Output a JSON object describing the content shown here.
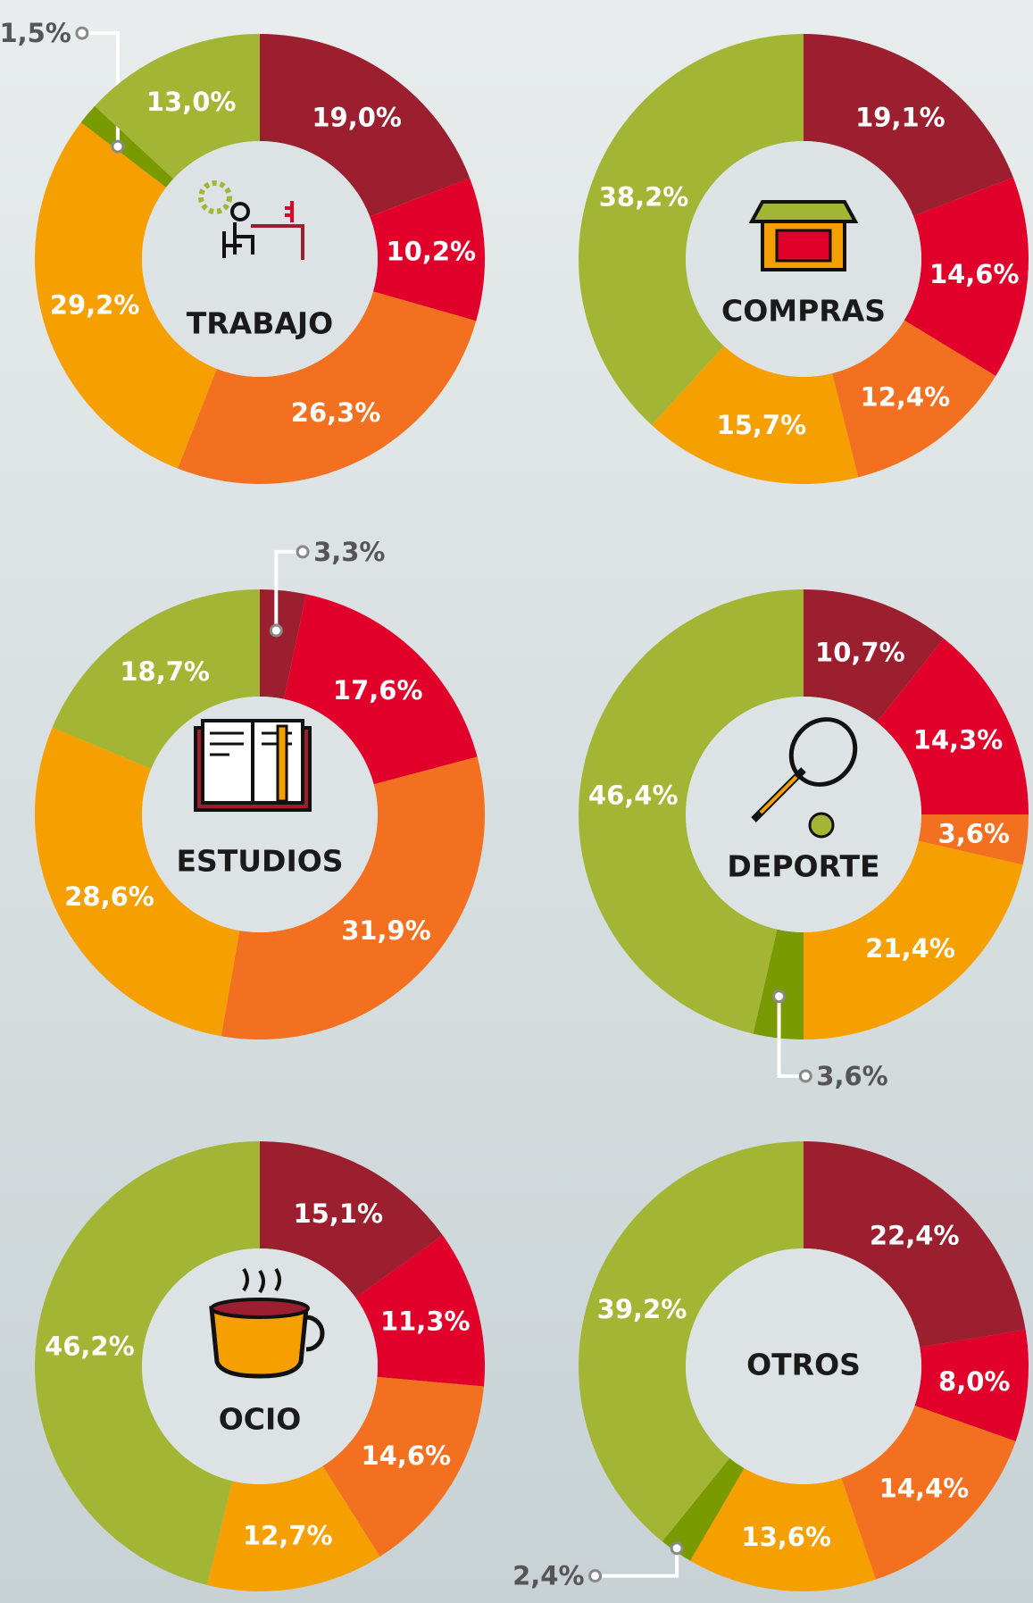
{
  "chart_data": [
    {
      "type": "donut",
      "title": "TRABAJO",
      "values": [
        19.0,
        10.2,
        26.3,
        29.2,
        1.5,
        13.0
      ],
      "value_labels": [
        "19,0%",
        "10,2%",
        "26,3%",
        "29,2%",
        "1,5%",
        "13,0%"
      ],
      "colors": [
        "#9b1f2e",
        "#e0002a",
        "#f37021",
        "#f5a000",
        "#7a9a01",
        "#a3b534"
      ]
    },
    {
      "type": "donut",
      "title": "COMPRAS",
      "values": [
        19.1,
        14.6,
        12.4,
        15.7,
        38.2
      ],
      "value_labels": [
        "19,1%",
        "14,6%",
        "12,4%",
        "15,7%",
        "38,2%"
      ],
      "colors": [
        "#9b1f2e",
        "#e0002a",
        "#f37021",
        "#f5a000",
        "#a3b534"
      ]
    },
    {
      "type": "donut",
      "title": "ESTUDIOS",
      "values": [
        3.3,
        17.6,
        31.9,
        28.6,
        18.7
      ],
      "value_labels": [
        "3,3%",
        "17,6%",
        "31,9%",
        "28,6%",
        "18,7%"
      ],
      "colors": [
        "#9b1f2e",
        "#e0002a",
        "#f37021",
        "#f5a000",
        "#a3b534"
      ]
    },
    {
      "type": "donut",
      "title": "DEPORTE",
      "values": [
        10.7,
        14.3,
        3.6,
        21.4,
        3.6,
        46.4
      ],
      "value_labels": [
        "10,7%",
        "14,3%",
        "3,6%",
        "21,4%",
        "3,6%",
        "46,4%"
      ],
      "colors": [
        "#9b1f2e",
        "#e0002a",
        "#f37021",
        "#f5a000",
        "#7a9a01",
        "#a3b534"
      ]
    },
    {
      "type": "donut",
      "title": "OCIO",
      "values": [
        15.1,
        11.3,
        14.6,
        12.7,
        46.2
      ],
      "value_labels": [
        "15,1%",
        "11,3%",
        "14,6%",
        "12,7%",
        "46,2%"
      ],
      "colors": [
        "#9b1f2e",
        "#e0002a",
        "#f37021",
        "#f5a000",
        "#a3b534"
      ]
    },
    {
      "type": "donut",
      "title": "OTROS",
      "values": [
        22.4,
        8.0,
        14.4,
        13.6,
        2.4,
        39.2
      ],
      "value_labels": [
        "22,4%",
        "8,0%",
        "14,4%",
        "13,6%",
        "2,4%",
        "39,2%"
      ],
      "colors": [
        "#9b1f2e",
        "#e0002a",
        "#f37021",
        "#f5a000",
        "#7a9a01",
        "#a3b534"
      ]
    }
  ]
}
